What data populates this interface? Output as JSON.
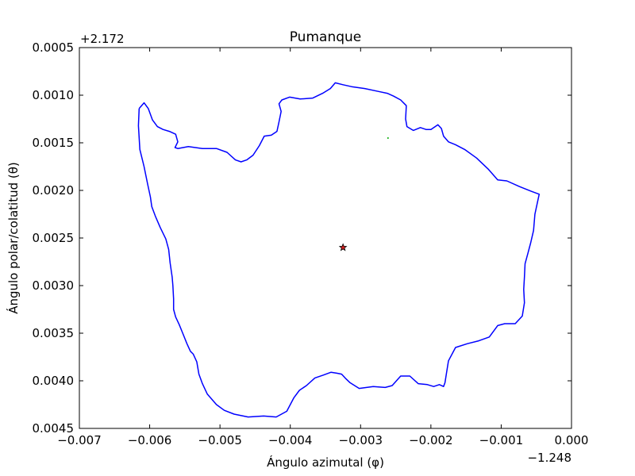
{
  "chart_data": {
    "type": "line",
    "title": "Pumanque",
    "xlabel": "Ángulo azimutal (φ)",
    "ylabel": "Ángulo polar/colatitud (θ)",
    "x_offset_label": "−1.248",
    "y_offset_label": "+2.172",
    "x_offset": -1.248,
    "y_offset": 2.172,
    "xlim": [
      -0.007,
      0.0
    ],
    "ylim": [
      0.0005,
      0.0045
    ],
    "y_inverted": true,
    "x_ticks": [
      "−0.007",
      "−0.006",
      "−0.005",
      "−0.004",
      "−0.003",
      "−0.002",
      "−0.001",
      "0.000"
    ],
    "y_ticks": [
      "0.0005",
      "0.0010",
      "0.0015",
      "0.0020",
      "0.0025",
      "0.0030",
      "0.0035",
      "0.0040",
      "0.0045"
    ],
    "grid": false,
    "series": [
      {
        "kind": "boundary",
        "color": "#0000ff",
        "x": [
          -0.00615,
          -0.00608,
          -0.00602,
          -0.00596,
          -0.00589,
          -0.00581,
          -0.00572,
          -0.00563,
          -0.0056,
          -0.00564,
          -0.0056,
          -0.00545,
          -0.00525,
          -0.00505,
          -0.0049,
          -0.00478,
          -0.0047,
          -0.00462,
          -0.00453,
          -0.00444,
          -0.00437,
          -0.00427,
          -0.00419,
          -0.00416,
          -0.00413,
          -0.00416,
          -0.00412,
          -0.00401,
          -0.00386,
          -0.00368,
          -0.00354,
          -0.00343,
          -0.00336,
          -0.00325,
          -0.00313,
          -0.00294,
          -0.00275,
          -0.00262,
          -0.00253,
          -0.00243,
          -0.00235,
          -0.00236,
          -0.00234,
          -0.00225,
          -0.00215,
          -0.00207,
          -0.002,
          -0.0019,
          -0.00185,
          -0.00182,
          -0.00175,
          -0.00165,
          -0.00152,
          -0.00135,
          -0.00118,
          -0.00105,
          -0.00092,
          -0.00074,
          -0.00057,
          -0.00046,
          -0.00052,
          -0.00054,
          -0.00058,
          -0.00062,
          -0.00066,
          -0.00067,
          -0.00068,
          -0.00067,
          -0.0007,
          -0.0008,
          -0.00095,
          -0.00105,
          -0.00117,
          -0.00132,
          -0.00148,
          -0.00165,
          -0.00175,
          -0.00178,
          -0.0018,
          -0.00182,
          -0.00188,
          -0.00196,
          -0.00205,
          -0.00218,
          -0.0023,
          -0.00243,
          -0.00255,
          -0.00265,
          -0.00282,
          -0.00302,
          -0.00315,
          -0.00322,
          -0.00327,
          -0.00334,
          -0.00342,
          -0.00353,
          -0.00365,
          -0.00377,
          -0.00387,
          -0.00395,
          -0.00405,
          -0.0042,
          -0.00438,
          -0.0046,
          -0.0048,
          -0.00494,
          -0.00505,
          -0.00518,
          -0.00525,
          -0.0053,
          -0.00533,
          -0.00538,
          -0.00542,
          -0.00547,
          -0.00553,
          -0.00558,
          -0.00563,
          -0.00566,
          -0.00566,
          -0.00567,
          -0.00568,
          -0.00571,
          -0.00573,
          -0.00577,
          -0.00585,
          -0.00592,
          -0.00597,
          -0.00599,
          -0.00603,
          -0.00608,
          -0.00614,
          -0.00616,
          -0.00615
        ],
        "y": [
          0.00114,
          0.00108,
          0.00114,
          0.00126,
          0.00133,
          0.00136,
          0.00138,
          0.00141,
          0.00149,
          0.00155,
          0.00156,
          0.00154,
          0.00156,
          0.00156,
          0.0016,
          0.00168,
          0.0017,
          0.00168,
          0.00163,
          0.00153,
          0.00143,
          0.00142,
          0.00138,
          0.00128,
          0.00117,
          0.00109,
          0.00105,
          0.00102,
          0.00104,
          0.00103,
          0.00098,
          0.00093,
          0.00087,
          0.00089,
          0.00091,
          0.00093,
          0.00096,
          0.00098,
          0.00101,
          0.00105,
          0.00111,
          0.00125,
          0.00133,
          0.00137,
          0.00134,
          0.00136,
          0.00136,
          0.00131,
          0.00135,
          0.00143,
          0.00149,
          0.00152,
          0.00157,
          0.00166,
          0.00178,
          0.00189,
          0.0019,
          0.00196,
          0.00201,
          0.00204,
          0.00225,
          0.00242,
          0.00255,
          0.00266,
          0.00277,
          0.00291,
          0.00304,
          0.00318,
          0.00332,
          0.0034,
          0.0034,
          0.00342,
          0.00354,
          0.00358,
          0.00361,
          0.00365,
          0.00379,
          0.00393,
          0.00402,
          0.00406,
          0.00404,
          0.00406,
          0.00404,
          0.00403,
          0.00395,
          0.00395,
          0.00405,
          0.00407,
          0.00406,
          0.00408,
          0.00402,
          0.00397,
          0.00393,
          0.00392,
          0.00391,
          0.00394,
          0.00397,
          0.00405,
          0.0041,
          0.00418,
          0.00432,
          0.00438,
          0.00437,
          0.00438,
          0.00435,
          0.00431,
          0.00425,
          0.00414,
          0.00403,
          0.00393,
          0.0038,
          0.00372,
          0.00369,
          0.00361,
          0.0035,
          0.00341,
          0.00333,
          0.00325,
          0.00314,
          0.003,
          0.00291,
          0.00276,
          0.00262,
          0.00251,
          0.00239,
          0.00227,
          0.00217,
          0.00207,
          0.00193,
          0.00175,
          0.00157,
          0.00132,
          0.00114
        ]
      },
      {
        "kind": "center-marker",
        "marker": "star",
        "color": "#d62020",
        "x": [
          -0.00325
        ],
        "y": [
          0.0026
        ]
      },
      {
        "kind": "point",
        "marker": "dot",
        "color": "#00aa00",
        "x": [
          -0.00261
        ],
        "y": [
          0.00145
        ]
      }
    ]
  }
}
